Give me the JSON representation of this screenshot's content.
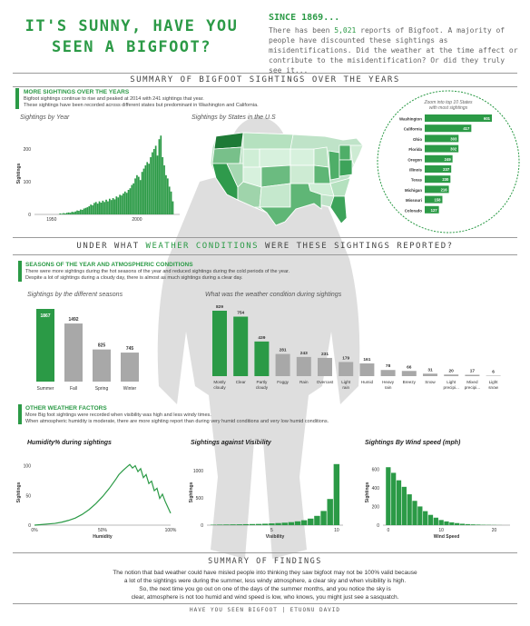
{
  "header": {
    "title_line1": "IT'S SUNNY, HAVE YOU",
    "title_line2": "SEEN A BIGFOOT?",
    "since_heading": "SINCE 1869...",
    "since_text_pre": "There has been ",
    "since_count": "5,021",
    "since_text_post": " reports of Bigfoot. A majority of people have discounted these sightings as misidentifications. Did the weather at the time affect or contribute to the misidentification? Or did they truly see it..."
  },
  "summary_section": {
    "title": "SUMMARY OF BIGFOOT SIGHTINGS OVER THE YEARS",
    "subhead": "MORE SIGHTINGS OVER THE YEARS",
    "text_line1": "Bigfoot sightings continue to rise and peaked at 2014 with 241 sightings that year.",
    "text_line2": "These sightings have been recorded across different states but predominant in Washington and California.",
    "year_chart_label": "Sightings by Year",
    "state_map_label": "Sightings by States in the U.S",
    "zoom_label_line1": "Zoom into top 10 States",
    "zoom_label_line2": "with most sightings"
  },
  "weather_section": {
    "title_pre": "UNDER WHAT ",
    "title_highlight": "WEATHER CONDITIONS",
    "title_post": " WERE THESE SIGHTINGS REPORTED?",
    "subhead": "SEASONS OF THE YEAR AND ATMOSPHERIC CONDITIONS",
    "text_line1": "There were more sightings during the hot seasons of the year and reduced sightings during the cold periods of the year.",
    "text_line2": "Despite a lot of sightings during a cloudy day, there is almost as much sightings during a clear day.",
    "seasons_label": "Sightings by the different seasons",
    "conditions_label": "What was the weather condition during sightings",
    "other_subhead": "OTHER WEATHER FACTORS",
    "other_line1": "More Big foot sightings were recorded when visibility was high and less windy times.",
    "other_line2": "When atmospheric humidity is moderate, there are more sighting report than during very humid conditions and very low humid conditions.",
    "humidity_label": "Humidity% during sightings",
    "visibility_label": "Sightings against Visibility",
    "wind_label": "Sightings By Wind speed (mph)"
  },
  "findings": {
    "title": "SUMMARY OF FINDINGS",
    "line1": "The notion that bad weather could have misled people into thinking they saw bigfoot may not be 100% valid because",
    "line2": "a lot of the sightings were during the summer, less windy atmosphere, a clear sky and when visibility is high.",
    "line3": "So, the next time you go out on one of the days of the summer months, and you notice the sky is",
    "line4": "clear, atmosphere is not too humid and wind speed is low, who knows, you might just see a sasquatch."
  },
  "footer": "HAVE YOU SEEN BIGFOOT | ETUONU DAVID",
  "colors": {
    "accent": "#2b9a46",
    "gray_bar": "#a8a8a8",
    "silhouette": "#d0d0d0"
  },
  "chart_data": [
    {
      "id": "year",
      "type": "bar",
      "title": "Sightings by Year",
      "ylabel": "Sightings",
      "xlabel": "Year",
      "xticks": [
        "1950",
        "2000"
      ],
      "yticks": [
        "0",
        "100",
        "200"
      ],
      "ylim": [
        0,
        250
      ],
      "x": [
        1955,
        1956,
        1957,
        1958,
        1959,
        1960,
        1961,
        1962,
        1963,
        1964,
        1965,
        1966,
        1967,
        1968,
        1969,
        1970,
        1971,
        1972,
        1973,
        1974,
        1975,
        1976,
        1977,
        1978,
        1979,
        1980,
        1981,
        1982,
        1983,
        1984,
        1985,
        1986,
        1987,
        1988,
        1989,
        1990,
        1991,
        1992,
        1993,
        1994,
        1995,
        1996,
        1997,
        1998,
        1999,
        2000,
        2001,
        2002,
        2003,
        2004,
        2005,
        2006,
        2007,
        2008,
        2009,
        2010,
        2011,
        2012,
        2013,
        2014,
        2015,
        2016,
        2017,
        2018,
        2019,
        2020,
        2021
      ],
      "values": [
        3,
        2,
        4,
        3,
        5,
        6,
        5,
        8,
        7,
        9,
        12,
        11,
        15,
        14,
        18,
        20,
        22,
        25,
        30,
        28,
        35,
        38,
        33,
        40,
        36,
        42,
        38,
        45,
        40,
        48,
        44,
        50,
        46,
        55,
        52,
        60,
        58,
        64,
        70,
        66,
        75,
        80,
        90,
        95,
        110,
        120,
        115,
        105,
        130,
        140,
        150,
        160,
        155,
        175,
        190,
        200,
        210,
        180,
        230,
        241,
        175,
        150,
        120,
        110,
        85,
        70,
        40
      ]
    },
    {
      "id": "top_states",
      "type": "bar",
      "title": "Zoom into top 10 States with most sightings",
      "categories": [
        "Washington",
        "California",
        "Ohio",
        "Florida",
        "Oregon",
        "Illinois",
        "Texas",
        "Michigan",
        "Missouri",
        "Colorado"
      ],
      "values": [
        601,
        417,
        303,
        302,
        249,
        237,
        230,
        216,
        158,
        127
      ]
    },
    {
      "id": "seasons",
      "type": "bar",
      "title": "Sightings by the different seasons",
      "categories": [
        "Summer",
        "Fall",
        "Spring",
        "Winter"
      ],
      "values": [
        1867,
        1492,
        825,
        745
      ]
    },
    {
      "id": "conditions",
      "type": "bar",
      "title": "What was the weather condition during sightings",
      "categories": [
        "Mostly cloudy",
        "Clear",
        "Partly cloudy",
        "Foggy",
        "Rain",
        "Overcast",
        "Light rain",
        "Humid",
        "Heavy rain",
        "Breezy",
        "Snow",
        "Light precipi...",
        "Mixed precipi...",
        "Light snow"
      ],
      "values": [
        829,
        754,
        439,
        281,
        243,
        231,
        179,
        161,
        78,
        66,
        31,
        20,
        17,
        6
      ]
    },
    {
      "id": "humidity",
      "type": "line",
      "title": "Humidity% during sightings",
      "xlabel": "Humidity",
      "ylabel": "Sightings",
      "xticks": [
        "0%",
        "50%",
        "100%"
      ],
      "yticks": [
        "0",
        "50",
        "100"
      ],
      "ylim": [
        0,
        110
      ],
      "x": [
        0,
        5,
        10,
        15,
        20,
        25,
        30,
        35,
        40,
        45,
        50,
        55,
        60,
        62,
        65,
        68,
        70,
        72,
        74,
        76,
        78,
        80,
        82,
        84,
        86,
        88,
        90,
        92,
        94,
        96,
        98,
        100
      ],
      "values": [
        0,
        1,
        2,
        3,
        5,
        8,
        12,
        18,
        26,
        36,
        48,
        62,
        78,
        85,
        92,
        98,
        102,
        96,
        100,
        90,
        95,
        80,
        85,
        70,
        74,
        58,
        62,
        45,
        52,
        40,
        30,
        20
      ]
    },
    {
      "id": "visibility",
      "type": "bar",
      "title": "Sightings against Visibility",
      "xlabel": "Visibility",
      "ylabel": "Sightings",
      "xticks": [
        "5",
        "10"
      ],
      "yticks": [
        "0",
        "500",
        "1000"
      ],
      "ylim": [
        0,
        1200
      ],
      "x": [
        0.5,
        1,
        1.5,
        2,
        2.5,
        3,
        3.5,
        4,
        4.5,
        5,
        5.5,
        6,
        6.5,
        7,
        7.5,
        8,
        8.5,
        9,
        9.5,
        10
      ],
      "values": [
        8,
        10,
        12,
        14,
        15,
        18,
        20,
        22,
        26,
        32,
        38,
        45,
        55,
        70,
        90,
        120,
        170,
        260,
        480,
        1120
      ]
    },
    {
      "id": "wind",
      "type": "bar",
      "title": "Sightings By Wind speed (mph)",
      "xlabel": "Wind Speed",
      "ylabel": "Sightings",
      "xticks": [
        "0",
        "10",
        "20"
      ],
      "yticks": [
        "0",
        "200",
        "400",
        "600"
      ],
      "ylim": [
        0,
        700
      ],
      "x": [
        0,
        1,
        2,
        3,
        4,
        5,
        6,
        7,
        8,
        9,
        10,
        11,
        12,
        13,
        14,
        15,
        16,
        17,
        18,
        19,
        20,
        21
      ],
      "values": [
        620,
        560,
        480,
        410,
        330,
        260,
        200,
        150,
        110,
        80,
        55,
        40,
        30,
        22,
        15,
        11,
        8,
        6,
        4,
        3,
        2,
        1
      ]
    }
  ]
}
